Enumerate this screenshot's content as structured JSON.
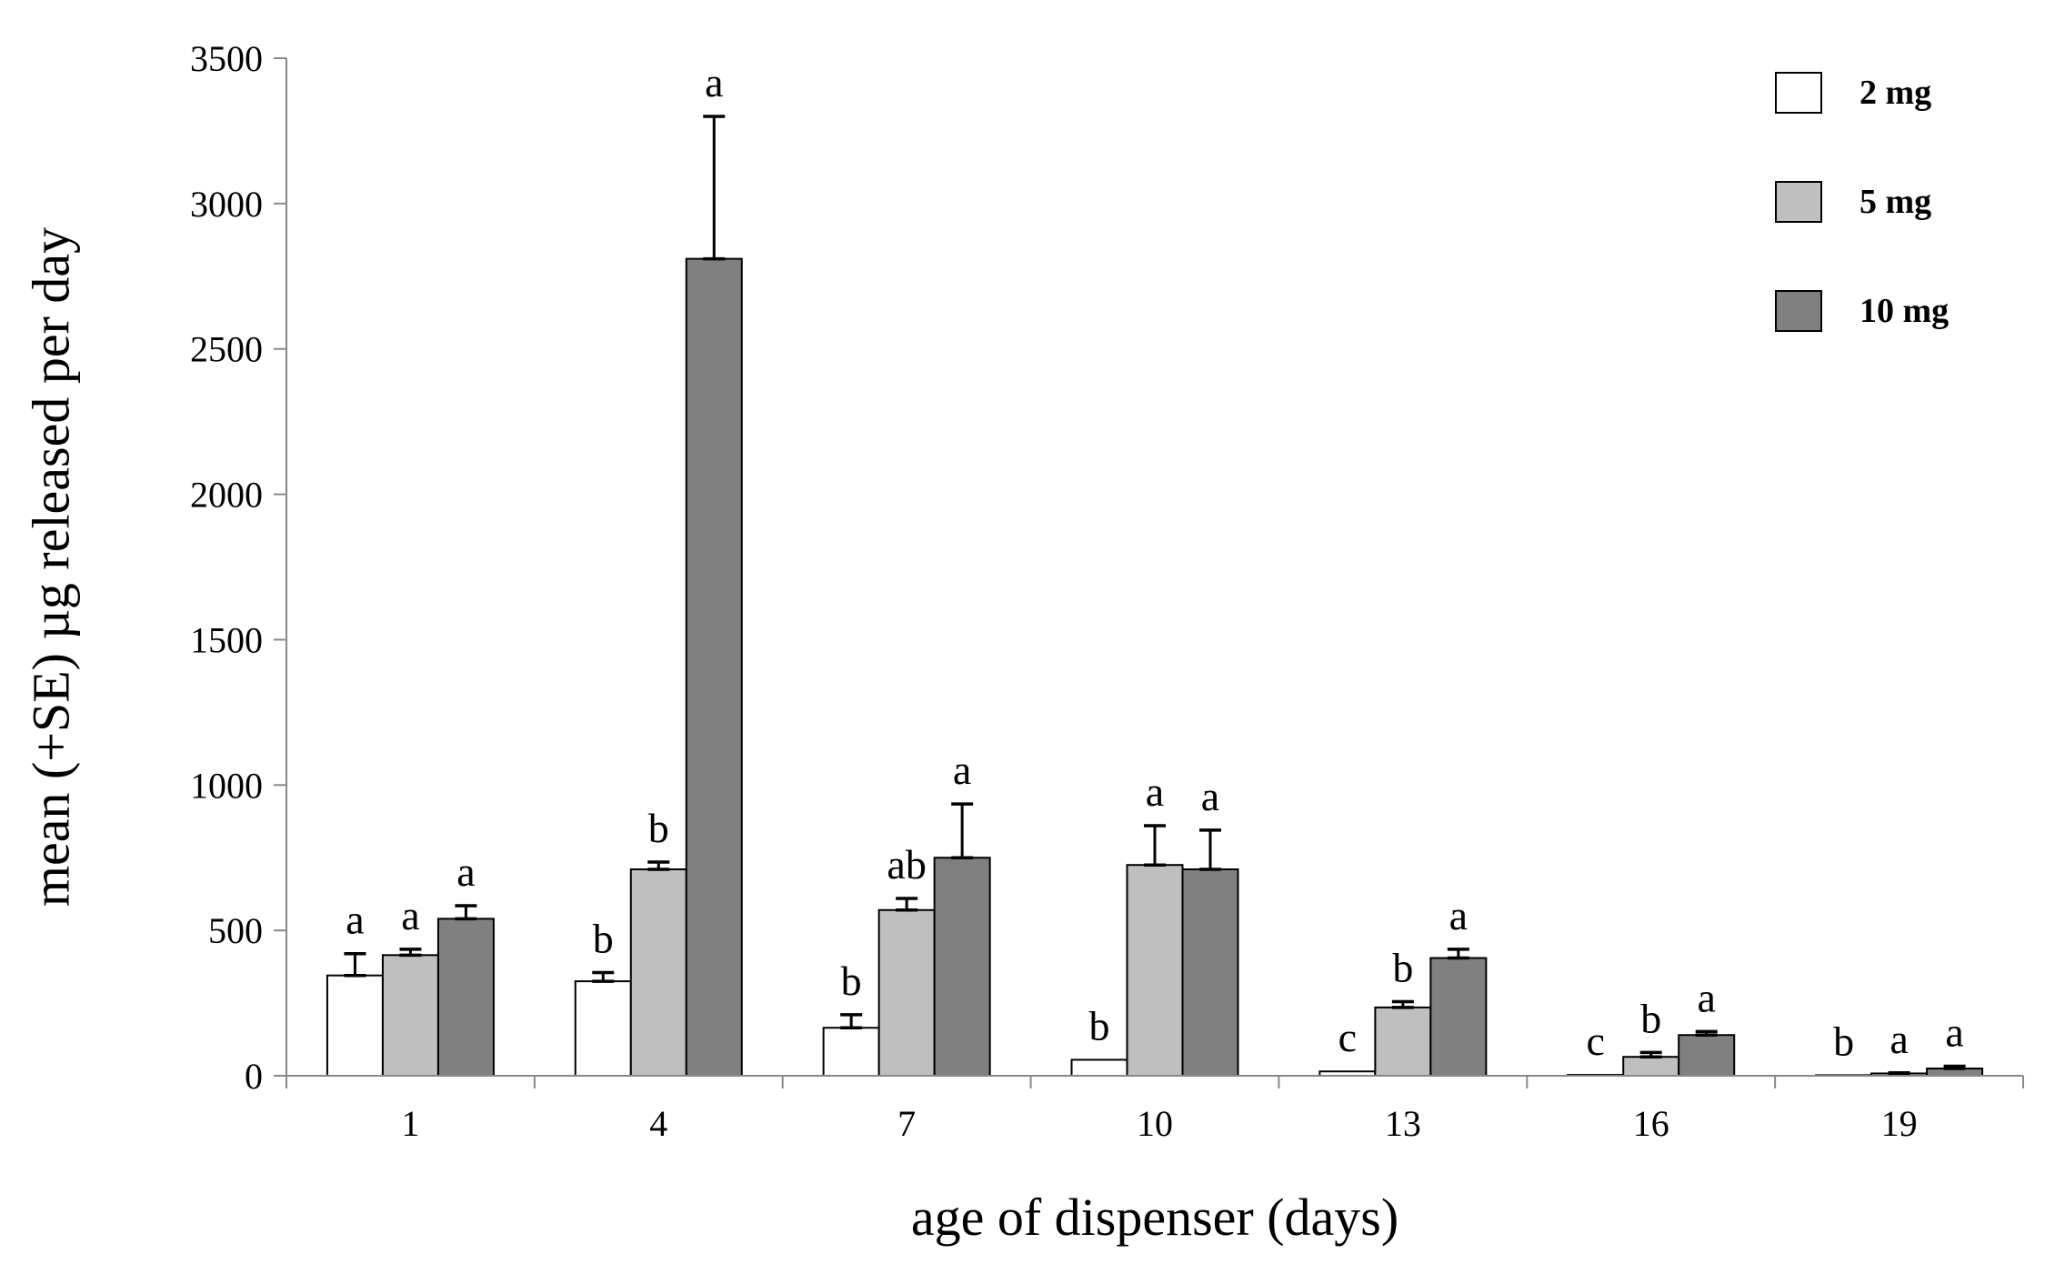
{
  "chart_data": {
    "type": "bar",
    "title": "",
    "xlabel": "age of dispenser (days)",
    "ylabel": "mean (+SE) µg released per day",
    "ylim": [
      0,
      3500
    ],
    "yticks": [
      0,
      500,
      1000,
      1500,
      2000,
      2500,
      3000,
      3500
    ],
    "grid": false,
    "legend_position": "top-right",
    "categories": [
      "1",
      "4",
      "7",
      "10",
      "13",
      "16",
      "19"
    ],
    "series": [
      {
        "name": "2 mg",
        "color": "#ffffff",
        "values": [
          345,
          325,
          165,
          55,
          15,
          3,
          2
        ],
        "errors": [
          75,
          30,
          45,
          0,
          0,
          0,
          0
        ],
        "labels": [
          "a",
          "b",
          "b",
          "b",
          "c",
          "c",
          "b"
        ]
      },
      {
        "name": "5 mg",
        "color": "#bfbfbf",
        "values": [
          415,
          710,
          570,
          725,
          235,
          65,
          8
        ],
        "errors": [
          20,
          25,
          40,
          135,
          20,
          15,
          2
        ],
        "labels": [
          "a",
          "b",
          "ab",
          "a",
          "b",
          "b",
          "a"
        ]
      },
      {
        "name": "10 mg",
        "color": "#808080",
        "values": [
          540,
          2810,
          750,
          710,
          405,
          140,
          25
        ],
        "errors": [
          45,
          490,
          185,
          135,
          30,
          12,
          8
        ],
        "labels": [
          "a",
          "a",
          "a",
          "a",
          "a",
          "a",
          "a"
        ]
      }
    ]
  }
}
